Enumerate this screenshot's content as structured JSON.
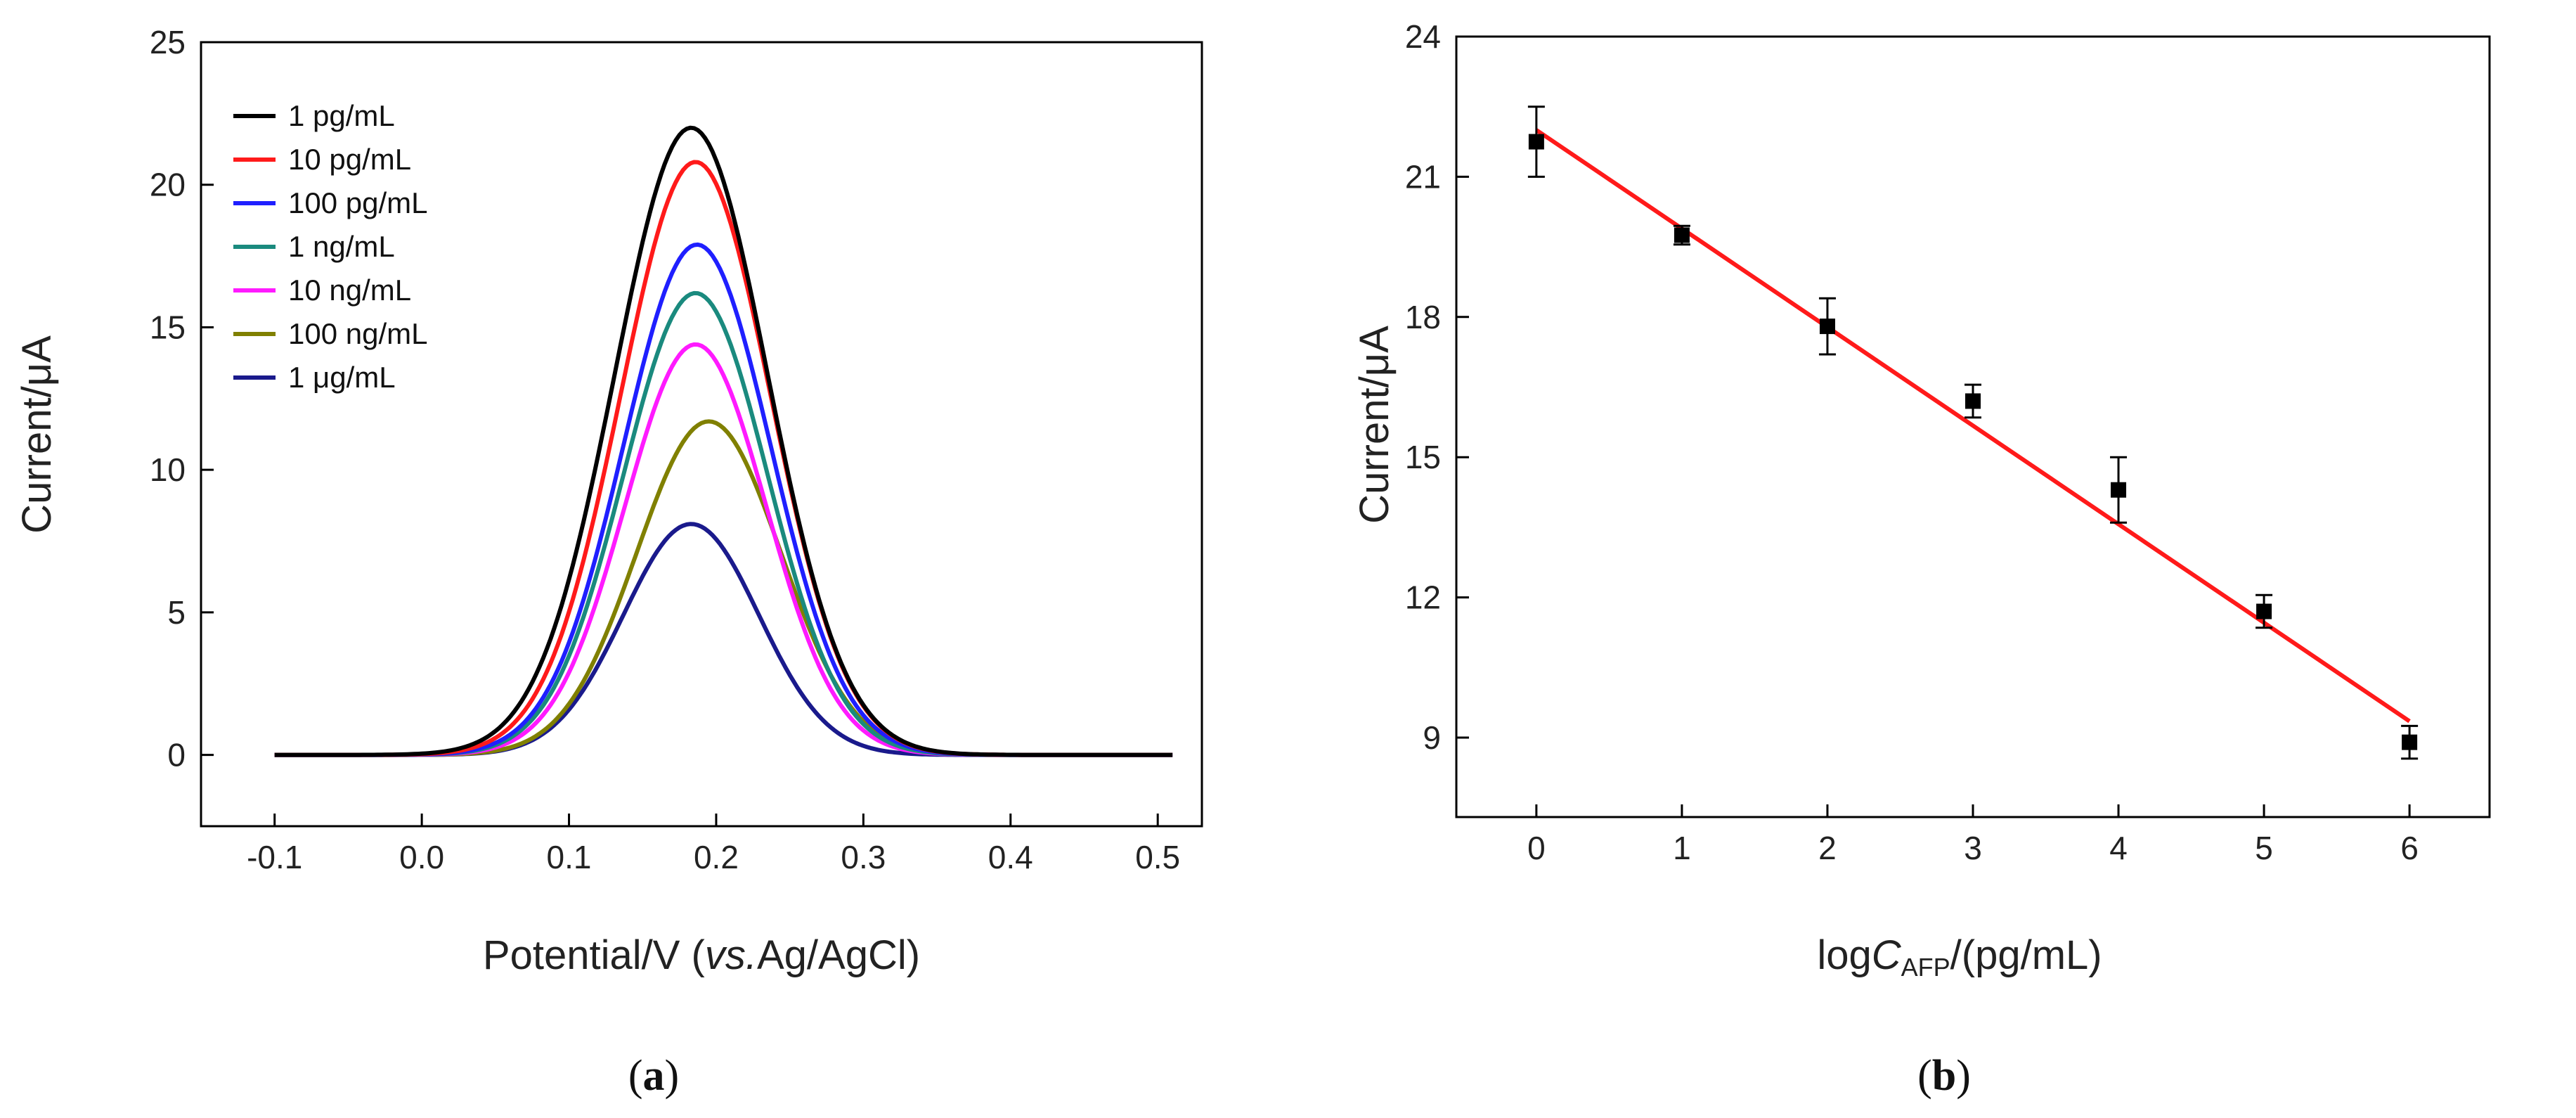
{
  "chart_data": [
    {
      "id": "a",
      "type": "line",
      "panel_label": {
        "open": "(",
        "letter": "a",
        "close": ")"
      },
      "xlabel_parts": {
        "main": "Potential/V (",
        "italic": "vs.",
        "rest": "Ag/AgCl)"
      },
      "ylabel": "Current/μA",
      "xlim": [
        -0.15,
        0.53
      ],
      "ylim": [
        -2.5,
        25
      ],
      "xticks": [
        -0.1,
        0.0,
        0.1,
        0.2,
        0.3,
        0.4,
        0.5
      ],
      "xtick_labels": [
        "-0.1",
        "0.0",
        "0.1",
        "0.2",
        "0.3",
        "0.4",
        "0.5"
      ],
      "yticks": [
        0,
        5,
        10,
        15,
        20,
        25
      ],
      "ytick_labels": [
        "0",
        "5",
        "10",
        "15",
        "20",
        "25"
      ],
      "legend_position": "top-left",
      "series": [
        {
          "name": "1 pg/mL",
          "color": "#000000",
          "peak": 22.0,
          "center": 0.183,
          "width": 0.052
        },
        {
          "name": "10 pg/mL",
          "color": "#ff1a1a",
          "peak": 20.8,
          "center": 0.186,
          "width": 0.051
        },
        {
          "name": "100 pg/mL",
          "color": "#1f1fff",
          "peak": 17.9,
          "center": 0.187,
          "width": 0.05
        },
        {
          "name": "1 ng/mL",
          "color": "#1a8a7e",
          "peak": 16.2,
          "center": 0.186,
          "width": 0.049
        },
        {
          "name": "10 ng/mL",
          "color": "#ff1aff",
          "peak": 14.4,
          "center": 0.186,
          "width": 0.048
        },
        {
          "name": "100 ng/mL",
          "color": "#808000",
          "peak": 11.7,
          "center": 0.195,
          "width": 0.049
        },
        {
          "name": "1 μg/mL",
          "color": "#1a1a8c",
          "peak": 8.1,
          "center": 0.183,
          "width": 0.046
        }
      ]
    },
    {
      "id": "b",
      "type": "scatter",
      "panel_label": {
        "open": "(",
        "letter": "b",
        "close": ")"
      },
      "xlabel_parts": {
        "pre": "log",
        "italic": "C",
        "sub": "AFP",
        "rest": "/(pg/mL)"
      },
      "ylabel": "Current/μA",
      "xlim": [
        -0.55,
        6.55
      ],
      "ylim": [
        7.3,
        24
      ],
      "xticks": [
        0,
        1,
        2,
        3,
        4,
        5,
        6
      ],
      "xtick_labels": [
        "0",
        "1",
        "2",
        "3",
        "4",
        "5",
        "6"
      ],
      "yticks": [
        9,
        12,
        15,
        18,
        21,
        24
      ],
      "ytick_labels": [
        "9",
        "12",
        "15",
        "18",
        "21",
        "24"
      ],
      "points": [
        {
          "x": 0,
          "y": 21.75,
          "err": 0.75
        },
        {
          "x": 1,
          "y": 19.75,
          "err": 0.2
        },
        {
          "x": 2,
          "y": 17.8,
          "err": 0.6
        },
        {
          "x": 3,
          "y": 16.2,
          "err": 0.35
        },
        {
          "x": 4,
          "y": 14.3,
          "err": 0.7
        },
        {
          "x": 5,
          "y": 11.7,
          "err": 0.35
        },
        {
          "x": 6,
          "y": 8.9,
          "err": 0.35
        }
      ],
      "fit": {
        "color": "#ff1a1a",
        "x": [
          0,
          6
        ],
        "y": [
          22.0,
          9.35
        ]
      }
    }
  ]
}
